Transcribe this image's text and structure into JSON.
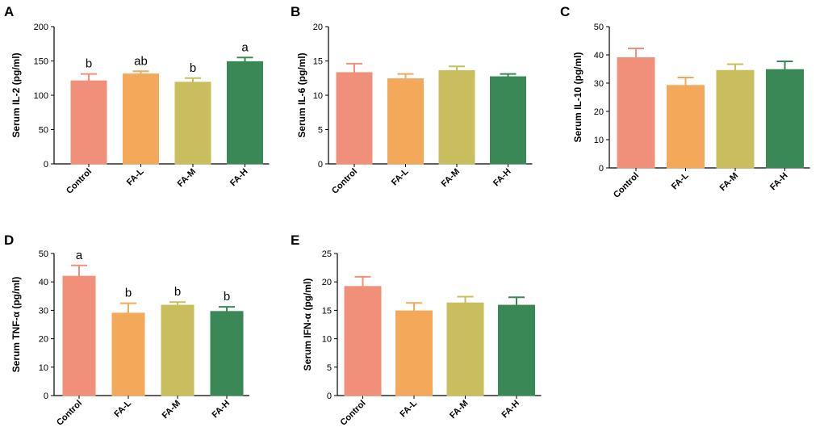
{
  "colors": {
    "Control": "#F0907A",
    "FA-L": "#F4A85A",
    "FA-M": "#C8BE5E",
    "FA-H": "#3A8855",
    "axis": "#000000"
  },
  "chart_data": [
    {
      "type": "bar",
      "panel": "A",
      "categories": [
        "Control",
        "FA-L",
        "FA-M",
        "FA-H"
      ],
      "values": [
        121,
        131,
        119,
        149
      ],
      "errors": [
        10,
        4,
        6,
        6
      ],
      "significance": [
        "b",
        "ab",
        "b",
        "a"
      ],
      "ylabel": "Serum IL-2 (pg/ml)",
      "ylim": [
        0,
        200
      ],
      "yticks": [
        "0",
        "50",
        "100",
        "150",
        "200"
      ]
    },
    {
      "type": "bar",
      "panel": "B",
      "categories": [
        "Control",
        "FA-L",
        "FA-M",
        "FA-H"
      ],
      "values": [
        13.3,
        12.4,
        13.6,
        12.7
      ],
      "errors": [
        1.3,
        0.7,
        0.6,
        0.4
      ],
      "significance": [
        "",
        "",
        "",
        ""
      ],
      "ylabel": "Serum IL-6 (pg/ml)",
      "ylim": [
        0,
        20
      ],
      "yticks": [
        "0",
        "5",
        "10",
        "15",
        "20"
      ]
    },
    {
      "type": "bar",
      "panel": "C",
      "categories": [
        "Control",
        "FA-L",
        "FA-M",
        "FA-H"
      ],
      "values": [
        39,
        29.2,
        34.5,
        34.8
      ],
      "errors": [
        3.3,
        2.8,
        2.2,
        2.9
      ],
      "significance": [
        "",
        "",
        "",
        ""
      ],
      "ylabel": "Serum IL-10 (pg/ml)",
      "ylim": [
        0,
        50
      ],
      "yticks": [
        "0",
        "10",
        "20",
        "30",
        "40",
        "50"
      ]
    },
    {
      "type": "bar",
      "panel": "D",
      "categories": [
        "Control",
        "FA-L",
        "FA-M",
        "FA-H"
      ],
      "values": [
        42,
        29,
        31.8,
        29.6
      ],
      "errors": [
        3.8,
        3.5,
        1.1,
        1.6
      ],
      "significance": [
        "a",
        "b",
        "b",
        "b"
      ],
      "ylabel": "Serum TNF-α (pg/ml)",
      "ylim": [
        0,
        50
      ],
      "yticks": [
        "0",
        "10",
        "20",
        "30",
        "40",
        "50"
      ]
    },
    {
      "type": "bar",
      "panel": "E",
      "categories": [
        "Control",
        "FA-L",
        "FA-M",
        "FA-H"
      ],
      "values": [
        19.2,
        14.9,
        16.3,
        15.9
      ],
      "errors": [
        1.7,
        1.4,
        1.1,
        1.4
      ],
      "significance": [
        "",
        "",
        "",
        ""
      ],
      "ylabel": "Serum IFN-α (pg/ml)",
      "ylim": [
        0,
        25
      ],
      "yticks": [
        "0",
        "5",
        "10",
        "15",
        "20",
        "25"
      ]
    }
  ]
}
